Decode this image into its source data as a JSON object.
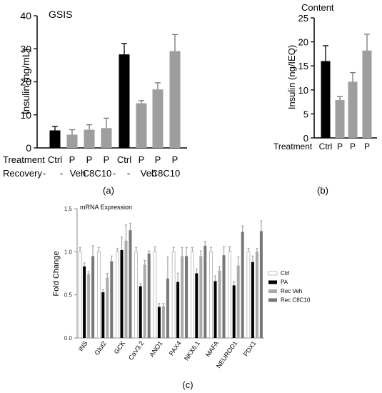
{
  "panel_labels": {
    "a": "(a)",
    "b": "(b)",
    "c": "(c)"
  },
  "row_labels": {
    "treatment": "Treatment",
    "recovery": "Recovery"
  },
  "colors": {
    "ctrl_dark": "#000000",
    "gray_mid": "#9e9e9e",
    "ctrl_white": "#ffffff",
    "pa_black": "#000000",
    "rec_veh": "#aaaaaa",
    "rec_c8c10": "#777777",
    "axis": "#000000",
    "axis_light": "#888888"
  },
  "chart_data": [
    {
      "id": "a",
      "type": "bar",
      "title": "GSIS",
      "ylabel": "Insulin (ng/mL)",
      "ylim": [
        0,
        40
      ],
      "yticks": [
        "0",
        "10",
        "20",
        "30",
        "40"
      ],
      "treatment": [
        "Ctrl",
        "P",
        "P",
        "P",
        "Ctrl",
        "P",
        "P",
        "P"
      ],
      "recovery": [
        "-",
        "-",
        "Veh",
        "C8C10",
        "-",
        "-",
        "Veh",
        "C8C10"
      ],
      "values": [
        5.3,
        4.0,
        5.5,
        6.0,
        28.3,
        13.5,
        17.7,
        29.3
      ],
      "errors": [
        1.2,
        1.5,
        1.5,
        3.0,
        3.3,
        0.8,
        2.0,
        5.0
      ],
      "colors": [
        "dark",
        "gray",
        "gray",
        "gray",
        "dark",
        "gray",
        "gray",
        "gray"
      ]
    },
    {
      "id": "b",
      "type": "bar",
      "title": "Content",
      "ylabel": "Insulin (ng/IEQ)",
      "ylim": [
        0,
        25
      ],
      "yticks": [
        "0",
        "5",
        "10",
        "15",
        "20",
        "25"
      ],
      "treatment": [
        "Ctrl",
        "P",
        "P",
        "P"
      ],
      "values": [
        16.0,
        7.9,
        11.7,
        18.2
      ],
      "errors": [
        3.2,
        0.7,
        1.9,
        3.4
      ],
      "colors": [
        "dark",
        "gray",
        "gray",
        "gray"
      ]
    },
    {
      "id": "c",
      "type": "bar",
      "title": "mRNA Expression",
      "ylabel": "Fold Change",
      "ylim": [
        0,
        1.5
      ],
      "yticks": [
        "0.0",
        "0.5",
        "1.0",
        "1.5"
      ],
      "categories": [
        "INS",
        "Glut2",
        "GCK",
        "CaV3.2",
        "ANO1",
        "PAX4",
        "NKX6.1",
        "MAFA",
        "NEUROD1",
        "PDX1"
      ],
      "legend_position": "right",
      "series": [
        {
          "name": "Ctrl",
          "color": "white",
          "values": [
            1.0,
            1.0,
            1.0,
            1.0,
            1.0,
            1.0,
            1.0,
            1.0,
            1.0,
            1.0
          ],
          "errors": [
            0.05,
            0.05,
            0.04,
            0.05,
            0.06,
            0.05,
            0.05,
            0.05,
            0.06,
            0.04
          ]
        },
        {
          "name": "PA",
          "color": "black",
          "values": [
            0.83,
            0.53,
            1.02,
            0.6,
            0.36,
            0.65,
            0.75,
            0.66,
            0.61,
            0.88
          ],
          "errors": [
            0.04,
            0.03,
            0.15,
            0.03,
            0.04,
            0.1,
            0.05,
            0.06,
            0.04,
            0.07
          ]
        },
        {
          "name": "Rec Veh",
          "color": "light",
          "values": [
            0.74,
            0.7,
            1.13,
            0.85,
            0.37,
            0.95,
            0.95,
            0.78,
            0.84,
            1.0
          ],
          "errors": [
            0.03,
            0.05,
            0.18,
            0.05,
            0.03,
            0.1,
            0.06,
            0.05,
            0.1,
            0.04
          ]
        },
        {
          "name": "Rec C8C10",
          "color": "mid",
          "values": [
            0.95,
            0.89,
            1.25,
            0.98,
            0.69,
            0.95,
            1.07,
            0.96,
            1.23,
            1.24
          ],
          "errors": [
            0.12,
            0.06,
            0.08,
            0.03,
            0.25,
            0.1,
            0.05,
            0.1,
            0.07,
            0.12
          ]
        }
      ]
    }
  ]
}
